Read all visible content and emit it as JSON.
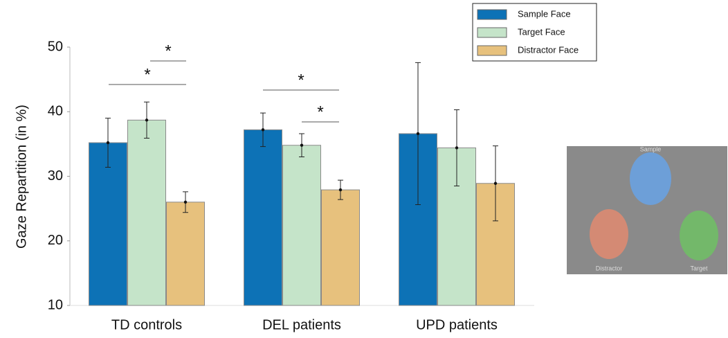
{
  "chart_data": {
    "type": "bar",
    "y_label": "Gaze Repartition (in %)",
    "categories": [
      "TD controls",
      "DEL patients",
      "UPD patients"
    ],
    "series": [
      {
        "name": "Sample Face",
        "color": "#0d72b6",
        "values": [
          35.2,
          37.2,
          36.6
        ],
        "errors": [
          3.8,
          2.6,
          11.0
        ]
      },
      {
        "name": "Target Face",
        "color": "#c5e4c9",
        "values": [
          38.7,
          34.8,
          34.4
        ],
        "errors": [
          2.8,
          1.8,
          5.9
        ]
      },
      {
        "name": "Distractor Face",
        "color": "#e7c17d",
        "values": [
          26.0,
          27.9,
          28.9
        ],
        "errors": [
          1.6,
          1.5,
          5.8
        ]
      }
    ],
    "ylim": [
      10,
      50
    ],
    "yticks": [
      10,
      20,
      30,
      40,
      50
    ],
    "annotations": [
      "*",
      "*",
      "*",
      "*"
    ],
    "image_labels": [
      "Sample",
      "Distractor",
      "Target"
    ]
  }
}
